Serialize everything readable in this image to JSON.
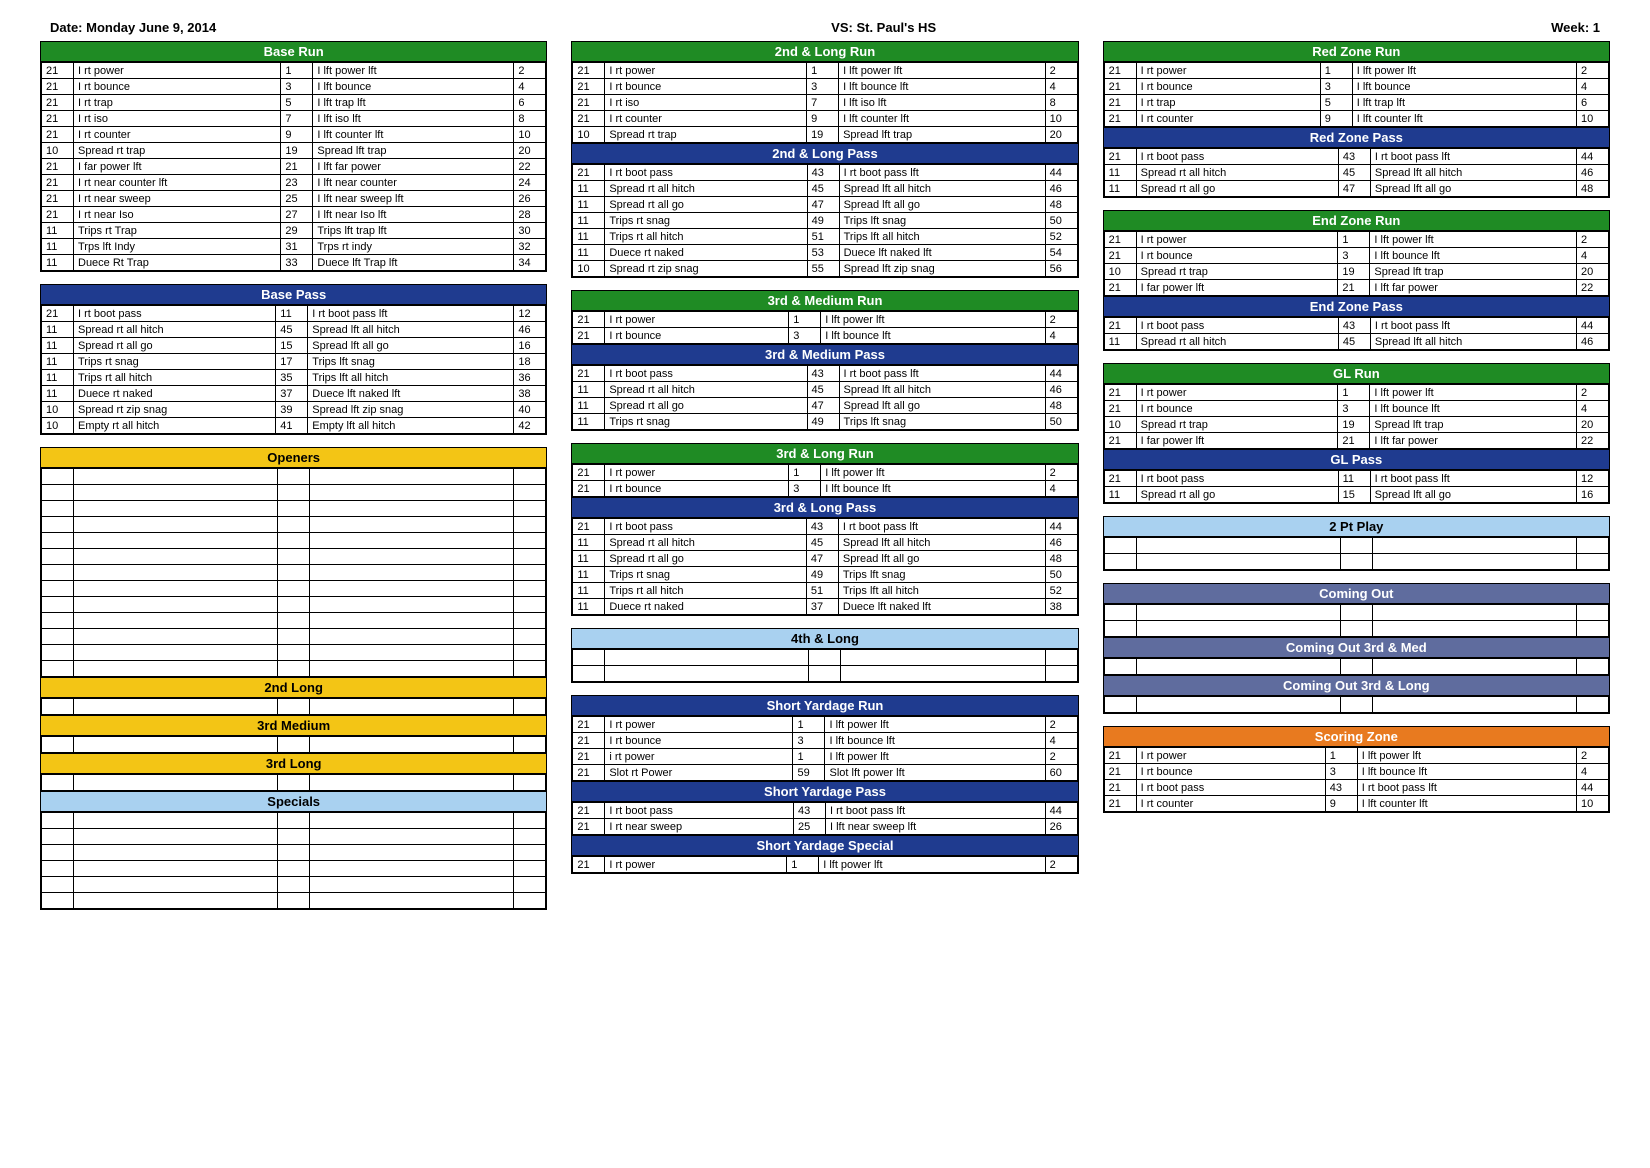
{
  "header": {
    "date": "Date: Monday June 9, 2014",
    "vs": "VS: St. Paul's HS",
    "week": "Week: 1"
  },
  "colors": {
    "green": "#1f8b24",
    "navy": "#1f3b8f",
    "yellow": "#f3c515",
    "lightblue": "#a9d1f0",
    "slate": "#5f6c9e",
    "orange": "#e87a1f"
  },
  "col1": [
    {
      "title": "Base Run",
      "style": "green",
      "rows": [
        [
          "21",
          "I rt power",
          "1",
          "I lft power lft",
          "2"
        ],
        [
          "21",
          "I rt bounce",
          "3",
          "I lft bounce",
          "4"
        ],
        [
          "21",
          "I rt trap",
          "5",
          "I lft trap lft",
          "6"
        ],
        [
          "21",
          "I rt iso",
          "7",
          "I lft iso lft",
          "8"
        ],
        [
          "21",
          "I rt counter",
          "9",
          "I lft counter lft",
          "10"
        ],
        [
          "10",
          "Spread rt trap",
          "19",
          "Spread lft trap",
          "20"
        ],
        [
          "21",
          "I far power lft",
          "21",
          "I lft far power",
          "22"
        ],
        [
          "21",
          "I rt near counter lft",
          "23",
          "I lft near counter",
          "24"
        ],
        [
          "21",
          "I rt near sweep",
          "25",
          "I lft near sweep lft",
          "26"
        ],
        [
          "21",
          "I rt near Iso",
          "27",
          "I lft near Iso lft",
          "28"
        ],
        [
          "11",
          "Trips rt Trap",
          "29",
          "Trips lft trap lft",
          "30"
        ],
        [
          "11",
          "Trps lft Indy",
          "31",
          "Trps rt indy",
          "32"
        ],
        [
          "11",
          "Duece Rt Trap",
          "33",
          "Duece lft Trap lft",
          "34"
        ]
      ]
    },
    {
      "title": "Base Pass",
      "style": "navy",
      "rows": [
        [
          "21",
          "I rt boot pass",
          "11",
          "I rt boot pass lft",
          "12"
        ],
        [
          "11",
          "Spread rt all hitch",
          "45",
          "Spread lft all hitch",
          "46"
        ],
        [
          "11",
          "Spread rt all go",
          "15",
          "Spread lft all go",
          "16"
        ],
        [
          "11",
          "Trips rt snag",
          "17",
          "Trips lft snag",
          "18"
        ],
        [
          "11",
          "Trips rt all hitch",
          "35",
          "Trips lft all hitch",
          "36"
        ],
        [
          "11",
          "Duece rt naked",
          "37",
          "Duece lft naked lft",
          "38"
        ],
        [
          "10",
          "Spread rt zip snag",
          "39",
          "Spread lft zip snag",
          "40"
        ],
        [
          "10",
          "Empty rt all hitch",
          "41",
          "Empty lft all hitch",
          "42"
        ]
      ]
    },
    {
      "title": "Openers",
      "style": "yellow",
      "empty": 13
    },
    {
      "title": "2nd Long",
      "style": "yellow",
      "empty": 1
    },
    {
      "title": "3rd Medium",
      "style": "yellow",
      "empty": 1
    },
    {
      "title": "3rd Long",
      "style": "yellow",
      "empty": 1
    },
    {
      "title": "Specials",
      "style": "lightblue",
      "empty": 6
    }
  ],
  "col2": [
    {
      "title": "2nd & Long Run",
      "style": "green",
      "rows": [
        [
          "21",
          "I rt power",
          "1",
          "I lft power lft",
          "2"
        ],
        [
          "21",
          "I rt bounce",
          "3",
          "I lft bounce lft",
          "4"
        ],
        [
          "21",
          "I rt iso",
          "7",
          "I lft iso lft",
          "8"
        ],
        [
          "21",
          "I rt counter",
          "9",
          "I lft counter lft",
          "10"
        ],
        [
          "10",
          "Spread rt trap",
          "19",
          "Spread lft trap",
          "20"
        ]
      ]
    },
    {
      "title": "2nd & Long Pass",
      "style": "navy",
      "rows": [
        [
          "21",
          "I rt boot pass",
          "43",
          "I rt boot pass lft",
          "44"
        ],
        [
          "11",
          "Spread rt all hitch",
          "45",
          "Spread lft all hitch",
          "46"
        ],
        [
          "11",
          "Spread rt all go",
          "47",
          "Spread lft all go",
          "48"
        ],
        [
          "11",
          "Trips rt snag",
          "49",
          "Trips lft snag",
          "50"
        ],
        [
          "11",
          "Trips rt all hitch",
          "51",
          "Trips lft all hitch",
          "52"
        ],
        [
          "11",
          "Duece rt naked",
          "53",
          "Duece lft naked lft",
          "54"
        ],
        [
          "10",
          "Spread rt zip snag",
          "55",
          "Spread lft zip snag",
          "56"
        ]
      ]
    },
    {
      "title": "3rd & Medium Run",
      "style": "green",
      "rows": [
        [
          "21",
          "I rt power",
          "1",
          "I lft power lft",
          "2"
        ],
        [
          "21",
          "I rt bounce",
          "3",
          "I lft bounce lft",
          "4"
        ]
      ]
    },
    {
      "title": "3rd & Medium Pass",
      "style": "navy",
      "rows": [
        [
          "21",
          "I rt boot pass",
          "43",
          "I rt boot pass lft",
          "44"
        ],
        [
          "11",
          "Spread rt all hitch",
          "45",
          "Spread lft all hitch",
          "46"
        ],
        [
          "11",
          "Spread rt all go",
          "47",
          "Spread lft all go",
          "48"
        ],
        [
          "11",
          "Trips rt snag",
          "49",
          "Trips lft snag",
          "50"
        ]
      ]
    },
    {
      "title": "3rd & Long Run",
      "style": "green",
      "rows": [
        [
          "21",
          "I rt power",
          "1",
          "I lft power lft",
          "2"
        ],
        [
          "21",
          "I rt bounce",
          "3",
          "I lft bounce lft",
          "4"
        ]
      ]
    },
    {
      "title": "3rd & Long Pass",
      "style": "navy",
      "rows": [
        [
          "21",
          "I rt boot pass",
          "43",
          "I rt boot pass lft",
          "44"
        ],
        [
          "11",
          "Spread rt all hitch",
          "45",
          "Spread lft all hitch",
          "46"
        ],
        [
          "11",
          "Spread rt all go",
          "47",
          "Spread lft all go",
          "48"
        ],
        [
          "11",
          "Trips rt snag",
          "49",
          "Trips lft snag",
          "50"
        ],
        [
          "11",
          "Trips rt all hitch",
          "51",
          "Trips lft all hitch",
          "52"
        ],
        [
          "11",
          "Duece rt naked",
          "37",
          "Duece lft naked lft",
          "38"
        ]
      ]
    },
    {
      "title": "4th & Long",
      "style": "lightblue",
      "empty": 2
    },
    {
      "title": "Short Yardage Run",
      "style": "navy",
      "rows": [
        [
          "21",
          "I rt power",
          "1",
          "I lft power lft",
          "2"
        ],
        [
          "21",
          "I rt bounce",
          "3",
          "I lft bounce lft",
          "4"
        ],
        [
          "21",
          "i rt power",
          "1",
          "I lft power lft",
          "2"
        ],
        [
          "21",
          "Slot rt Power",
          "59",
          "Slot lft power lft",
          "60"
        ]
      ]
    },
    {
      "title": "Short Yardage Pass",
      "style": "navy",
      "rows": [
        [
          "21",
          "I rt boot pass",
          "43",
          "I rt boot pass lft",
          "44"
        ],
        [
          "21",
          "I rt near sweep",
          "25",
          "I lft near sweep lft",
          "26"
        ]
      ]
    },
    {
      "title": "Short Yardage Special",
      "style": "navy",
      "rows": [
        [
          "21",
          "I rt power",
          "1",
          "I lft power lft",
          "2"
        ]
      ]
    }
  ],
  "col3": [
    {
      "title": "Red Zone Run",
      "style": "green",
      "rows": [
        [
          "21",
          "I rt power",
          "1",
          "I lft power lft",
          "2"
        ],
        [
          "21",
          "I rt bounce",
          "3",
          "I lft bounce",
          "4"
        ],
        [
          "21",
          "I rt trap",
          "5",
          "I lft trap lft",
          "6"
        ],
        [
          "21",
          "I rt counter",
          "9",
          "I lft counter lft",
          "10"
        ]
      ]
    },
    {
      "title": "Red Zone Pass",
      "style": "navy",
      "rows": [
        [
          "21",
          "I rt boot pass",
          "43",
          "I rt boot pass lft",
          "44"
        ],
        [
          "11",
          "Spread rt all hitch",
          "45",
          "Spread lft all hitch",
          "46"
        ],
        [
          "11",
          "Spread rt all go",
          "47",
          "Spread lft all go",
          "48"
        ]
      ]
    },
    {
      "title": "End Zone Run",
      "style": "green",
      "rows": [
        [
          "21",
          "I rt power",
          "1",
          "I lft power lft",
          "2"
        ],
        [
          "21",
          "I rt bounce",
          "3",
          "I lft bounce lft",
          "4"
        ],
        [
          "10",
          "Spread rt trap",
          "19",
          "Spread lft trap",
          "20"
        ],
        [
          "21",
          "I far power lft",
          "21",
          "I lft far power",
          "22"
        ]
      ]
    },
    {
      "title": "End Zone Pass",
      "style": "navy",
      "rows": [
        [
          "21",
          "I rt boot pass",
          "43",
          "I rt boot pass lft",
          "44"
        ],
        [
          "11",
          "Spread rt all hitch",
          "45",
          "Spread lft all hitch",
          "46"
        ]
      ]
    },
    {
      "title": "GL Run",
      "style": "green",
      "rows": [
        [
          "21",
          "I rt power",
          "1",
          "I lft power lft",
          "2"
        ],
        [
          "21",
          "I rt bounce",
          "3",
          "I lft bounce lft",
          "4"
        ],
        [
          "10",
          "Spread rt trap",
          "19",
          "Spread lft trap",
          "20"
        ],
        [
          "21",
          "I far power lft",
          "21",
          "I lft far power",
          "22"
        ]
      ]
    },
    {
      "title": "GL Pass",
      "style": "navy",
      "rows": [
        [
          "21",
          "I rt boot pass",
          "11",
          "I rt boot pass lft",
          "12"
        ],
        [
          "11",
          "Spread rt all go",
          "15",
          "Spread lft all go",
          "16"
        ]
      ]
    },
    {
      "title": "2 Pt Play",
      "style": "lightblue",
      "empty": 2
    },
    {
      "title": "Coming Out",
      "style": "slate",
      "empty": 2
    },
    {
      "title": "Coming Out 3rd & Med",
      "style": "slate",
      "empty": 1
    },
    {
      "title": "Coming Out 3rd & Long",
      "style": "slate",
      "empty": 1
    },
    {
      "title": "Scoring Zone",
      "style": "orange",
      "rows": [
        [
          "21",
          "I rt power",
          "1",
          "I lft power lft",
          "2"
        ],
        [
          "21",
          "I rt bounce",
          "3",
          "I lft bounce lft",
          "4"
        ],
        [
          "21",
          "I rt boot pass",
          "43",
          "I rt boot pass lft",
          "44"
        ],
        [
          "21",
          "I rt counter",
          "9",
          "I lft counter lft",
          "10"
        ]
      ]
    }
  ],
  "groupings": {
    "col2": [
      [
        0,
        1
      ],
      [
        2,
        3
      ],
      [
        4,
        5
      ],
      [
        6
      ],
      [
        7,
        8,
        9
      ]
    ],
    "col3": [
      [
        0,
        1
      ],
      [
        2,
        3
      ],
      [
        4,
        5
      ],
      [
        6
      ],
      [
        7,
        8,
        9
      ],
      [
        10
      ]
    ]
  }
}
